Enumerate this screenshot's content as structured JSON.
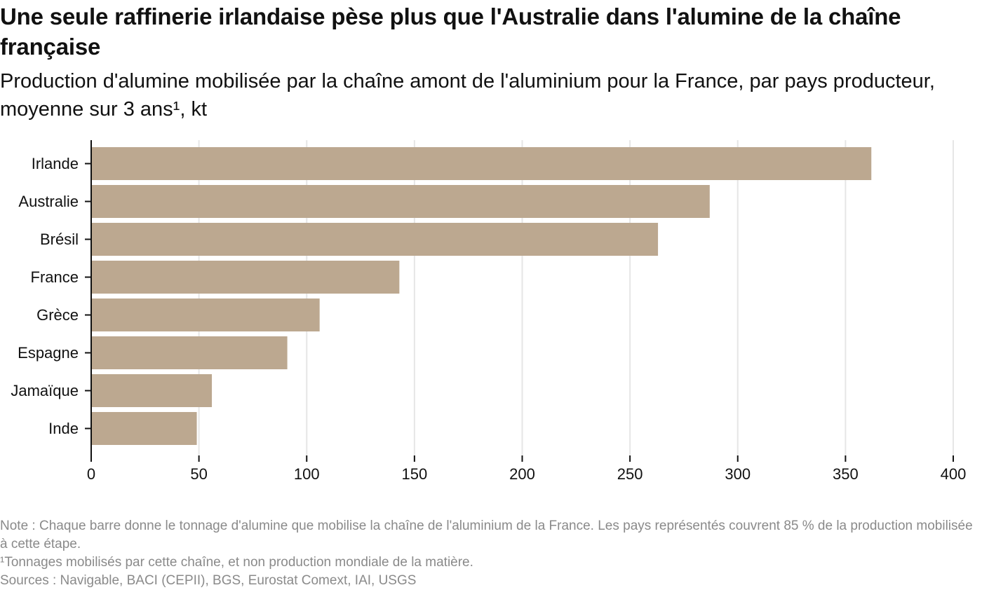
{
  "header": {
    "title": "Une seule raffinerie irlandaise pèse plus que l'Australie dans l'alumine de la chaîne française",
    "subtitle_main": "Production d'alumine mobilisée par la chaîne amont de l'aluminium pour la France, par pays producteur, moyenne sur 3 ans",
    "subtitle_note_mark": "¹",
    "subtitle_unit": ", kt"
  },
  "chart_data": {
    "type": "bar",
    "orientation": "horizontal",
    "categories": [
      "Irlande",
      "Australie",
      "Brésil",
      "France",
      "Grèce",
      "Espagne",
      "Jamaïque",
      "Inde"
    ],
    "values": [
      362,
      287,
      263,
      143,
      106,
      91,
      56,
      49
    ],
    "xlim": [
      0,
      400
    ],
    "xticks": [
      0,
      50,
      100,
      150,
      200,
      250,
      300,
      350,
      400
    ],
    "grid": true,
    "bar_color": "#bca890",
    "grid_color": "#e6e6e6",
    "axis_color": "#111111"
  },
  "footer": {
    "note": "Note : Chaque barre donne le tonnage d'alumine que mobilise la chaîne de l'aluminium de la France. Les pays représentés couvrent 85 % de la production mobilisée à cette étape.",
    "footnote": "¹Tonnages mobilisés par cette chaîne, et non production mondiale de la matière.",
    "sources": "Sources : Navigable, BACI (CEPII), BGS, Eurostat Comext, IAI, USGS"
  }
}
